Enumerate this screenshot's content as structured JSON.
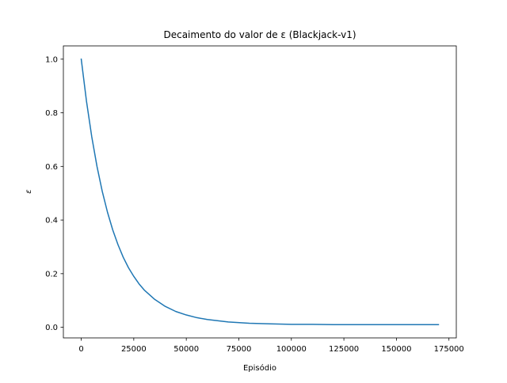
{
  "chart_data": {
    "type": "line",
    "title": "Decaimento do valor de ε (Blackjack-v1)",
    "xlabel": "Episódio",
    "ylabel": "ε",
    "xlim": [
      -8500,
      178500
    ],
    "ylim": [
      -0.0395,
      1.0495
    ],
    "xticks": [
      0,
      25000,
      50000,
      75000,
      100000,
      125000,
      150000,
      175000
    ],
    "xtick_labels": [
      "0",
      "25000",
      "50000",
      "75000",
      "100000",
      "125000",
      "150000",
      "175000"
    ],
    "yticks": [
      0.0,
      0.2,
      0.4,
      0.6,
      0.8,
      1.0
    ],
    "ytick_labels": [
      "0.0",
      "0.2",
      "0.4",
      "0.6",
      "0.8",
      "1.0"
    ],
    "grid": false,
    "legend": "none",
    "series": [
      {
        "color": "#1f77b4",
        "x": [
          0,
          2500,
          5000,
          7500,
          10000,
          12500,
          15000,
          17500,
          20000,
          22500,
          25000,
          27500,
          30000,
          35000,
          40000,
          45000,
          50000,
          55000,
          60000,
          70000,
          80000,
          90000,
          100000,
          110000,
          120000,
          130000,
          140000,
          150000,
          160000,
          170000
        ],
        "y": [
          1.0,
          0.843,
          0.711,
          0.6,
          0.507,
          0.429,
          0.363,
          0.308,
          0.261,
          0.222,
          0.19,
          0.162,
          0.139,
          0.104,
          0.078,
          0.059,
          0.046,
          0.036,
          0.029,
          0.02,
          0.015,
          0.013,
          0.011,
          0.011,
          0.01,
          0.01,
          0.01,
          0.01,
          0.01,
          0.01
        ]
      }
    ]
  }
}
